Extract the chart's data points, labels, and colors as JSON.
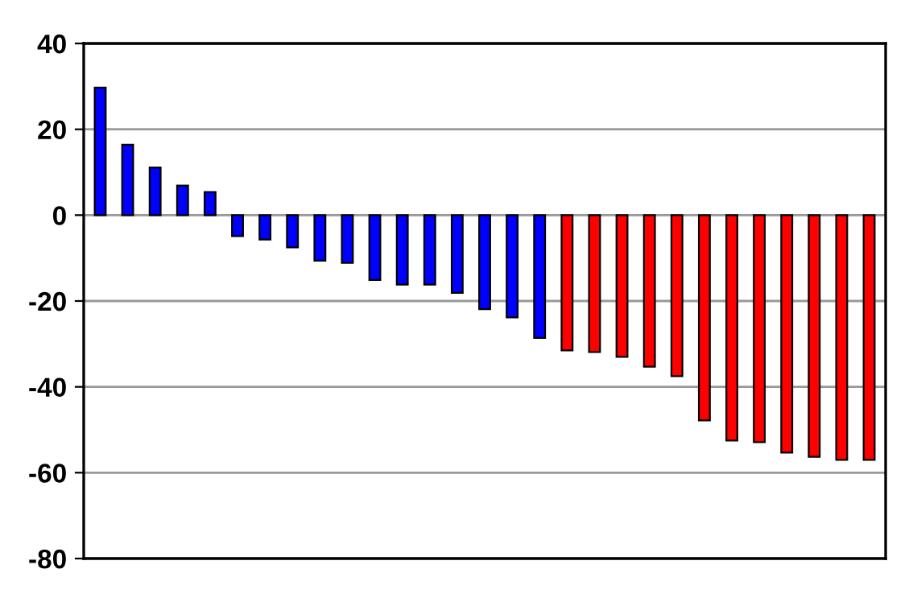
{
  "chart_data": {
    "type": "bar",
    "categories": [
      null,
      null,
      null,
      null,
      null,
      null,
      null,
      null,
      null,
      null,
      null,
      null,
      null,
      null,
      null,
      null,
      null,
      null,
      null,
      null,
      null,
      null,
      null,
      null,
      null,
      null,
      null,
      null,
      null
    ],
    "values": [
      29.7,
      16.4,
      11.1,
      6.9,
      5.4,
      -4.9,
      -5.7,
      -7.5,
      -10.6,
      -11.1,
      -15.1,
      -16.2,
      -16.2,
      -18.1,
      -21.9,
      -23.8,
      -28.6,
      -31.5,
      -31.9,
      -33,
      -35.3,
      -37.5,
      -47.8,
      -52.5,
      -52.9,
      -55.3,
      -56.3,
      -57,
      -57
    ],
    "colors": [
      "#0000ff",
      "#0000ff",
      "#0000ff",
      "#0000ff",
      "#0000ff",
      "#0000ff",
      "#0000ff",
      "#0000ff",
      "#0000ff",
      "#0000ff",
      "#0000ff",
      "#0000ff",
      "#0000ff",
      "#0000ff",
      "#0000ff",
      "#0000ff",
      "#0000ff",
      "#ff0000",
      "#ff0000",
      "#ff0000",
      "#ff0000",
      "#ff0000",
      "#ff0000",
      "#ff0000",
      "#ff0000",
      "#ff0000",
      "#ff0000",
      "#ff0000",
      "#ff0000"
    ],
    "ylim": [
      -80,
      40
    ],
    "yticks": [
      -80,
      -60,
      -40,
      -20,
      0,
      20,
      40
    ],
    "grid": "y",
    "legend": false
  }
}
